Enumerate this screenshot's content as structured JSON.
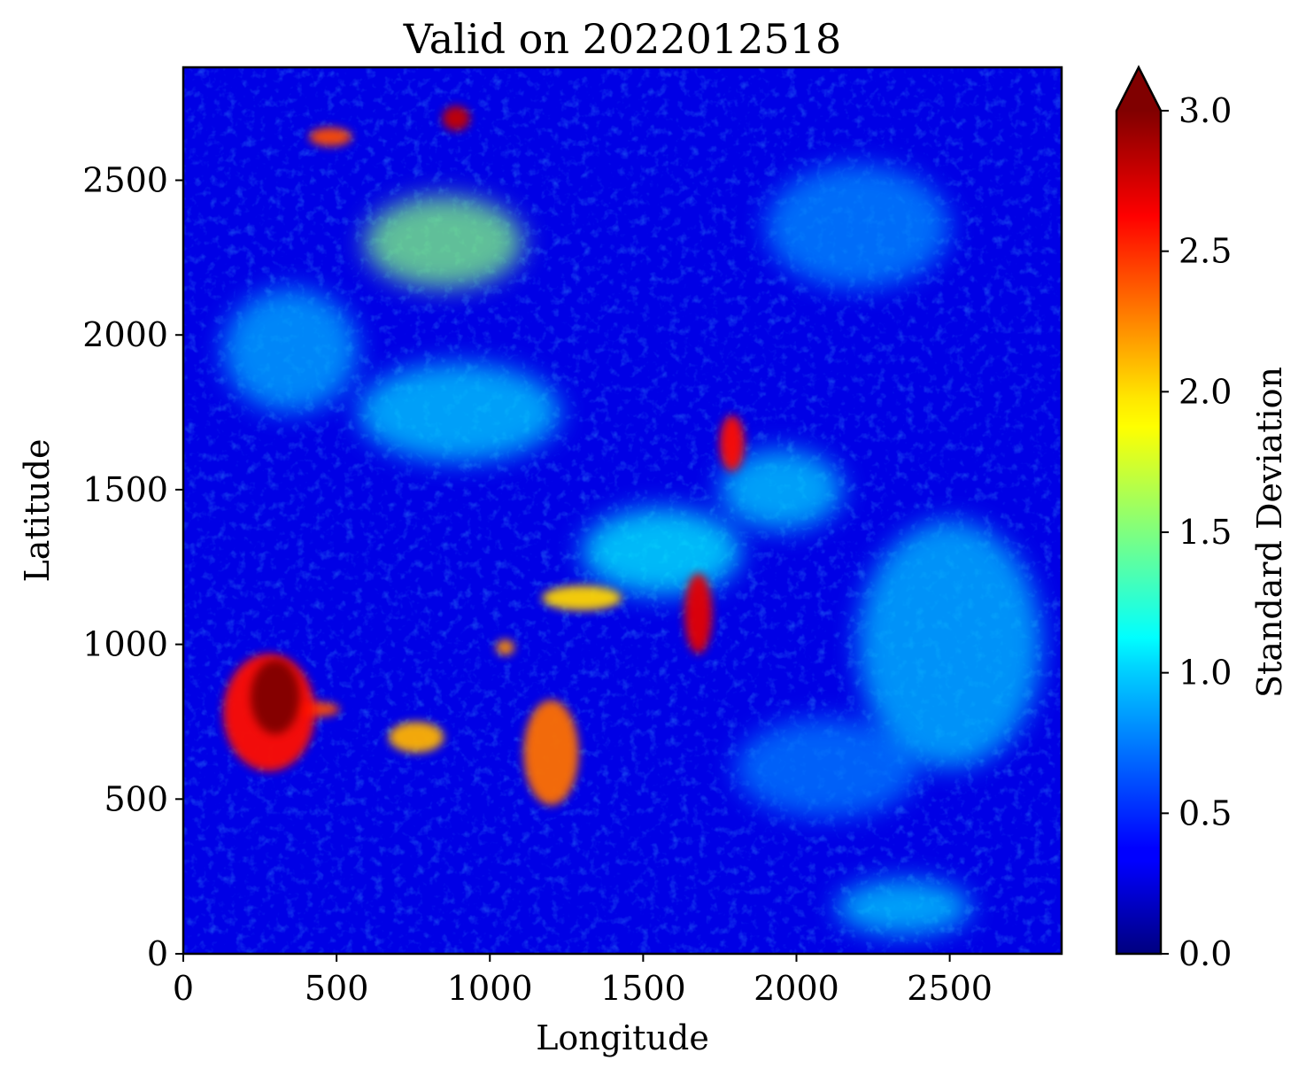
{
  "chart_data": {
    "type": "heatmap",
    "title": "Valid on  2022012518",
    "xlabel": "Longitude",
    "ylabel": "Latitude",
    "xlim": [
      0,
      2865
    ],
    "ylim": [
      0,
      2865
    ],
    "xticks": [
      0,
      500,
      1000,
      1500,
      2000,
      2500
    ],
    "yticks": [
      0,
      500,
      1000,
      1500,
      2000,
      2500
    ],
    "colormap": "jet",
    "colorbar": {
      "label": "Standard Deviation",
      "range": [
        0.0,
        3.0
      ],
      "ticks": [
        "0.0",
        "0.5",
        "1.0",
        "1.5",
        "2.0",
        "2.5",
        "3.0"
      ],
      "extend": "max",
      "over_color": "#800000"
    },
    "background_level": 0.3,
    "features": [
      {
        "x": 300,
        "y": 830,
        "value": 3.0,
        "rx": 80,
        "ry": 120
      },
      {
        "x": 280,
        "y": 780,
        "value": 2.6,
        "rx": 150,
        "ry": 190
      },
      {
        "x": 430,
        "y": 790,
        "value": 2.4,
        "rx": 80,
        "ry": 25
      },
      {
        "x": 1680,
        "y": 1100,
        "value": 2.7,
        "rx": 45,
        "ry": 130
      },
      {
        "x": 1790,
        "y": 1650,
        "value": 2.6,
        "rx": 40,
        "ry": 90
      },
      {
        "x": 1200,
        "y": 650,
        "value": 2.3,
        "rx": 90,
        "ry": 170
      },
      {
        "x": 1300,
        "y": 1150,
        "value": 2.0,
        "rx": 130,
        "ry": 40
      },
      {
        "x": 890,
        "y": 2700,
        "value": 2.8,
        "rx": 45,
        "ry": 40
      },
      {
        "x": 480,
        "y": 2640,
        "value": 2.4,
        "rx": 70,
        "ry": 30
      },
      {
        "x": 760,
        "y": 700,
        "value": 2.1,
        "rx": 90,
        "ry": 50
      },
      {
        "x": 1050,
        "y": 990,
        "value": 2.2,
        "rx": 30,
        "ry": 25
      },
      {
        "x": 850,
        "y": 2300,
        "value": 1.5,
        "rx": 260,
        "ry": 150
      },
      {
        "x": 1560,
        "y": 1300,
        "value": 1.1,
        "rx": 260,
        "ry": 140
      },
      {
        "x": 900,
        "y": 1750,
        "value": 1.0,
        "rx": 330,
        "ry": 160
      },
      {
        "x": 1950,
        "y": 1500,
        "value": 1.0,
        "rx": 200,
        "ry": 130
      },
      {
        "x": 2500,
        "y": 1000,
        "value": 0.95,
        "rx": 300,
        "ry": 400
      },
      {
        "x": 2100,
        "y": 600,
        "value": 0.75,
        "rx": 300,
        "ry": 160
      },
      {
        "x": 350,
        "y": 1950,
        "value": 0.9,
        "rx": 220,
        "ry": 200
      },
      {
        "x": 2200,
        "y": 2350,
        "value": 0.8,
        "rx": 300,
        "ry": 200
      },
      {
        "x": 2350,
        "y": 150,
        "value": 1.0,
        "rx": 220,
        "ry": 90
      }
    ]
  }
}
